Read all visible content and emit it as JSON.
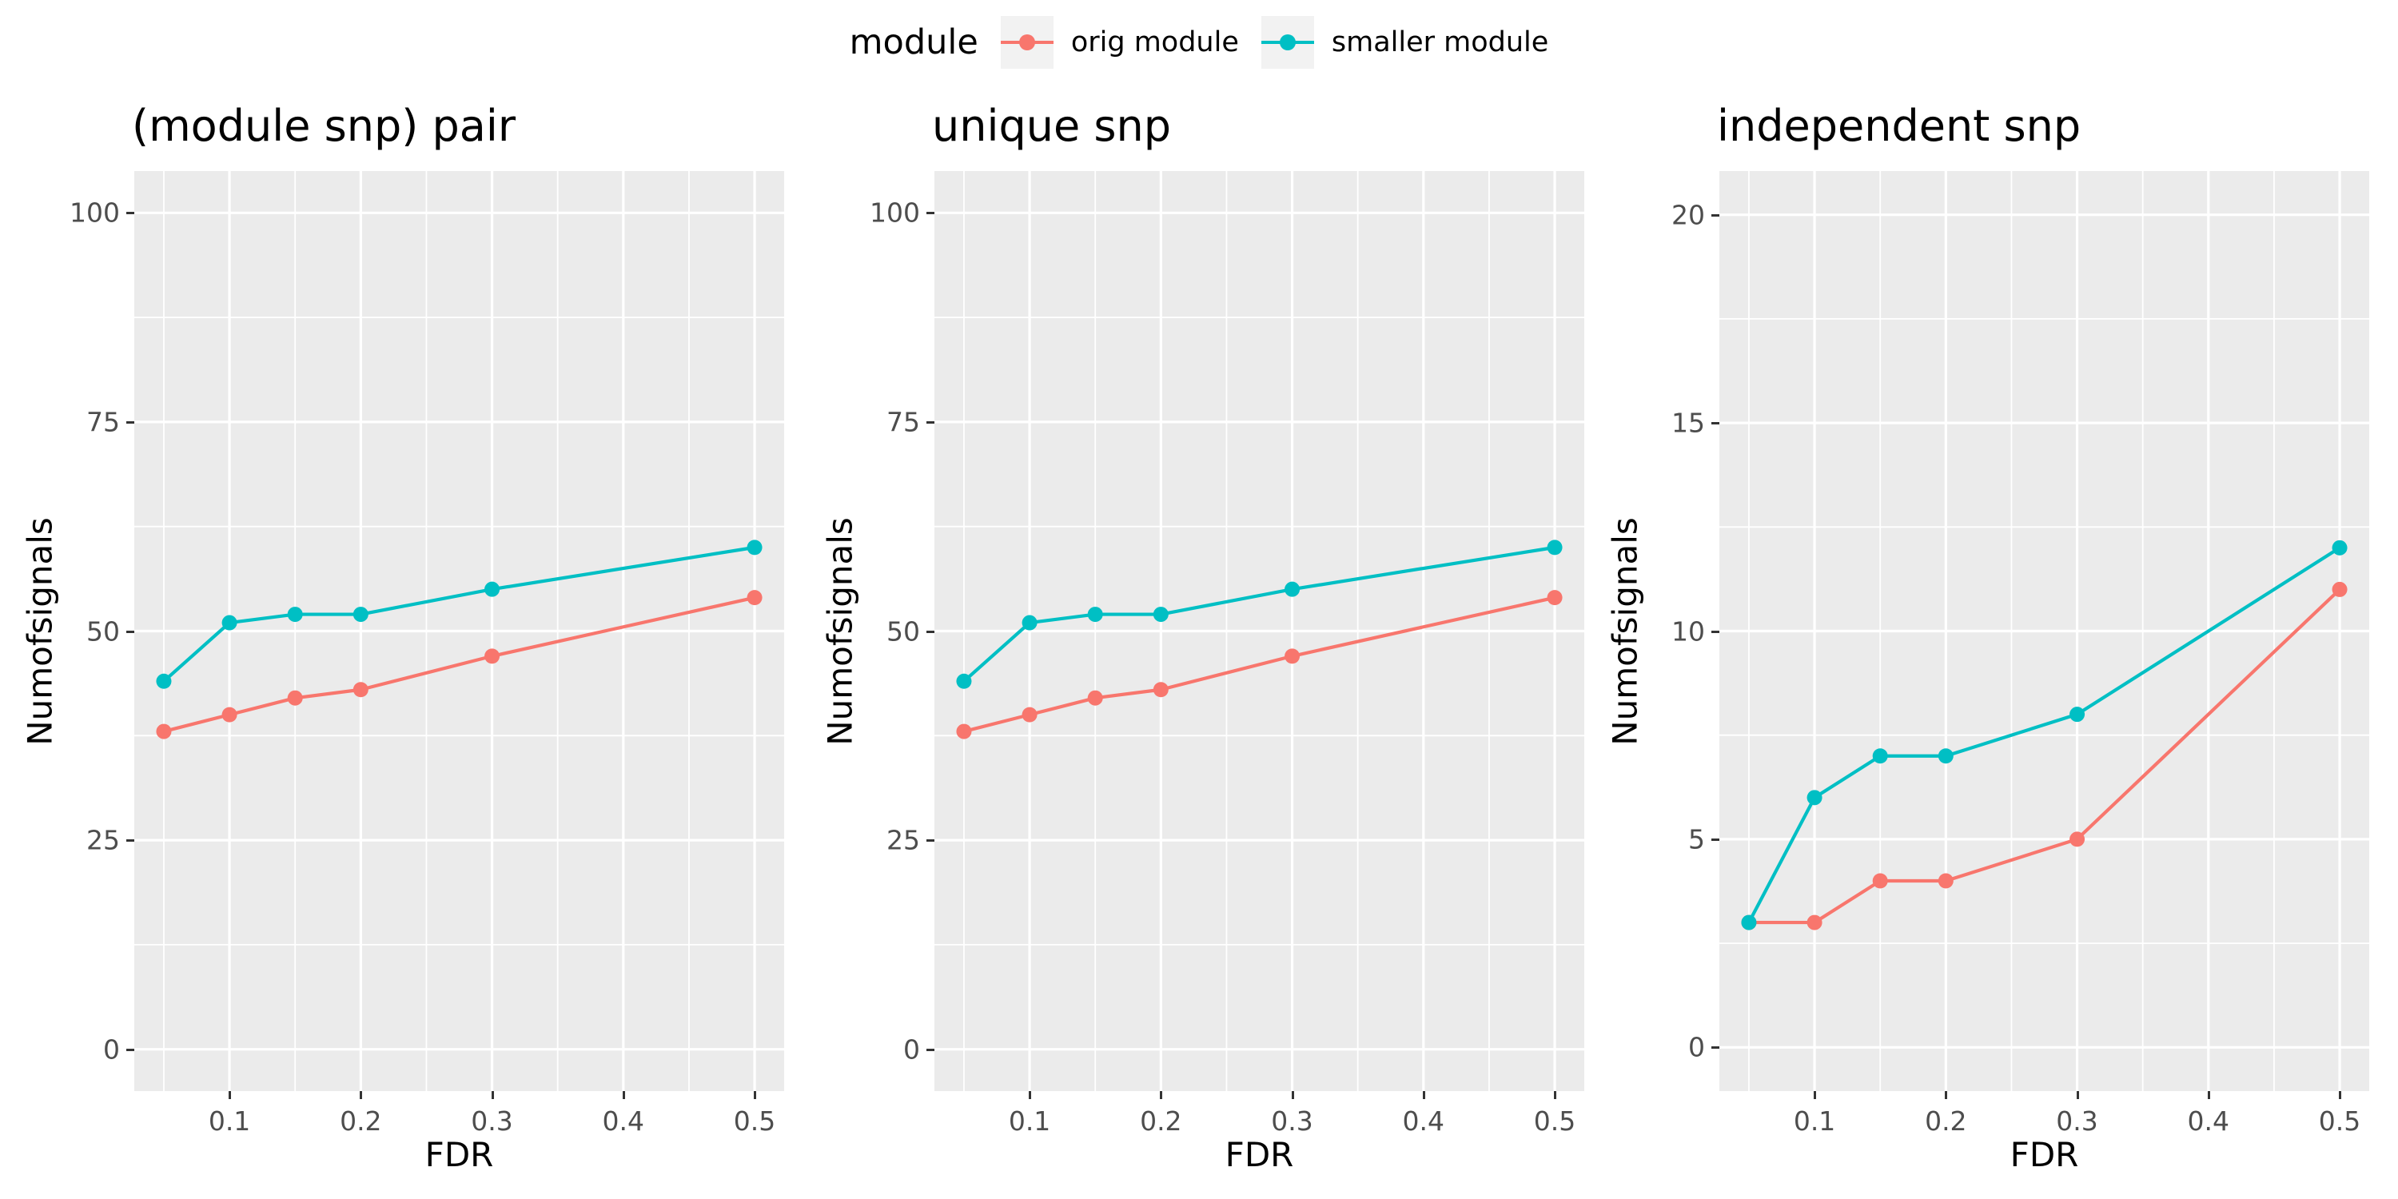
{
  "legend": {
    "title": "module",
    "items": [
      {
        "label": "orig module",
        "color": "#F8766D"
      },
      {
        "label": "smaller module",
        "color": "#00BFC4"
      }
    ]
  },
  "style": {
    "panel_bg": "#EBEBEB",
    "grid_color": "#FFFFFF",
    "tick_text_color": "#4D4D4D",
    "tick_mark_color": "#333333",
    "legend_key_bg": "#F2F2F2",
    "series_colors": {
      "orig module": "#F8766D",
      "smaller module": "#00BFC4"
    }
  },
  "chart_data": [
    {
      "type": "line",
      "title": "(module snp) pair",
      "xlabel": "FDR",
      "ylabel": "Numofsignals",
      "x": [
        0.05,
        0.1,
        0.15,
        0.2,
        0.3,
        0.5
      ],
      "series": [
        {
          "name": "orig module",
          "color": "#F8766D",
          "values": [
            38,
            40,
            42,
            43,
            47,
            54
          ]
        },
        {
          "name": "smaller module",
          "color": "#00BFC4",
          "values": [
            44,
            51,
            52,
            52,
            55,
            60
          ]
        }
      ],
      "xticks": [
        0.1,
        0.2,
        0.3,
        0.4,
        0.5
      ],
      "yticks": [
        0,
        25,
        50,
        75,
        100
      ],
      "xrange": [
        0.0275,
        0.5225
      ],
      "yrange": [
        -5,
        105
      ],
      "grid": true,
      "legend_position": "top"
    },
    {
      "type": "line",
      "title": "unique snp",
      "xlabel": "FDR",
      "ylabel": "Numofsignals",
      "x": [
        0.05,
        0.1,
        0.15,
        0.2,
        0.3,
        0.5
      ],
      "series": [
        {
          "name": "orig module",
          "color": "#F8766D",
          "values": [
            38,
            40,
            42,
            43,
            47,
            54
          ]
        },
        {
          "name": "smaller module",
          "color": "#00BFC4",
          "values": [
            44,
            51,
            52,
            52,
            55,
            60
          ]
        }
      ],
      "xticks": [
        0.1,
        0.2,
        0.3,
        0.4,
        0.5
      ],
      "yticks": [
        0,
        25,
        50,
        75,
        100
      ],
      "xrange": [
        0.0275,
        0.5225
      ],
      "yrange": [
        -5,
        105
      ],
      "grid": true,
      "legend_position": "top"
    },
    {
      "type": "line",
      "title": "independent snp",
      "xlabel": "FDR",
      "ylabel": "Numofsignals",
      "x": [
        0.05,
        0.1,
        0.15,
        0.2,
        0.3,
        0.5
      ],
      "series": [
        {
          "name": "orig module",
          "color": "#F8766D",
          "values": [
            3,
            3,
            4,
            4,
            5,
            11
          ]
        },
        {
          "name": "smaller module",
          "color": "#00BFC4",
          "values": [
            3,
            6,
            7,
            7,
            8,
            12
          ]
        }
      ],
      "xticks": [
        0.1,
        0.2,
        0.3,
        0.4,
        0.5
      ],
      "yticks": [
        0,
        5,
        10,
        15,
        20
      ],
      "xrange": [
        0.0275,
        0.5225
      ],
      "yrange": [
        -1.05,
        21.05
      ],
      "grid": true,
      "legend_position": "top"
    }
  ]
}
